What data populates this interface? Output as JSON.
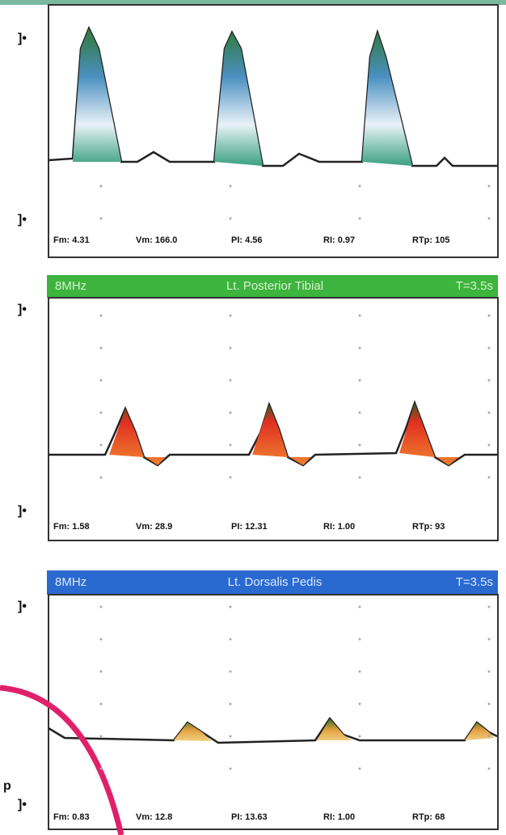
{
  "panels": [
    {
      "footer": [
        "Fm: 4.31",
        "Vm: 166.0",
        "PI: 4.56",
        "RI: 0.97",
        "RTp: 105"
      ]
    },
    {
      "header": {
        "frequency": "8MHz",
        "vessel": "Lt. Posterior Tibial",
        "time": "T=3.5s"
      },
      "footer": [
        "Fm: 1.58",
        "Vm: 28.9",
        "PI: 12.31",
        "RI: 1.00",
        "RTp: 93"
      ]
    },
    {
      "header": {
        "frequency": "8MHz",
        "vessel": "Lt. Dorsalis Pedis",
        "time": "T=3.5s"
      },
      "footer": [
        "Fm: 0.83",
        "Vm: 12.8",
        "PI: 13.63",
        "RI: 1.00",
        "RTp: 68"
      ]
    }
  ],
  "corner_label": "p"
}
